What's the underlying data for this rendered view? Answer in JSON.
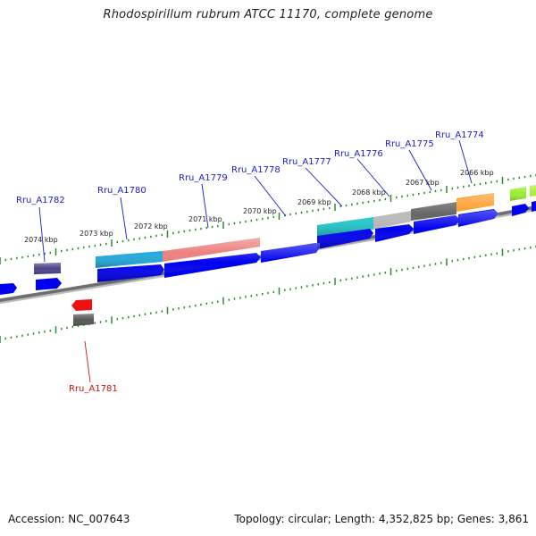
{
  "title": "Rhodospirillum rubrum ATCC 11170, complete genome",
  "footer": {
    "accession": "Accession: NC_007643",
    "summary": "Topology: circular; Length: 4,352,825 bp; Genes: 3,861"
  },
  "colors": {
    "label_blue": "#1a1acc",
    "label_red": "#cc1111",
    "cds_blue": "#0000ee",
    "backbone": "#777777",
    "tick_green": "#2e8b2e",
    "red_gene": "#ee1111",
    "gray_gene": "#555555"
  },
  "kbp_labels": [
    "2074 kbp",
    "2073 kbp",
    "2072 kbp",
    "2071 kbp",
    "2070 kbp",
    "2069 kbp",
    "2068 kbp",
    "2067 kbp",
    "2066 kbp"
  ],
  "gene_labels": [
    {
      "text": "Rru_A1782",
      "color": "#1a1acc"
    },
    {
      "text": "Rru_A1780",
      "color": "#1a1acc"
    },
    {
      "text": "Rru_A1779",
      "color": "#1a1acc"
    },
    {
      "text": "Rru_A1778",
      "color": "#1a1acc"
    },
    {
      "text": "Rru_A1777",
      "color": "#1a1acc"
    },
    {
      "text": "Rru_A1776",
      "color": "#1a1acc"
    },
    {
      "text": "Rru_A1775",
      "color": "#1a1acc"
    },
    {
      "text": "Rru_A1774",
      "color": "#1a1acc"
    },
    {
      "text": "Rru_A1781",
      "color": "#cc1111"
    }
  ],
  "features": [
    {
      "name": "Rru_A1782",
      "color": "#4a4488"
    },
    {
      "name": "Rru_A1780",
      "color": "#22aadd"
    },
    {
      "name": "Rru_A1779",
      "color": "#ee8080"
    },
    {
      "name": "Rru_A1777",
      "color": "#22cccc"
    },
    {
      "name": "Rru_A1776",
      "color": "#bbbbbb"
    },
    {
      "name": "Rru_A1775",
      "color": "#666666"
    },
    {
      "name": "Rru_A1774",
      "color": "#ff9922"
    },
    {
      "name": "unlabeled-green-1",
      "color": "#99ee33"
    },
    {
      "name": "unlabeled-green-2",
      "color": "#aaee33"
    }
  ]
}
